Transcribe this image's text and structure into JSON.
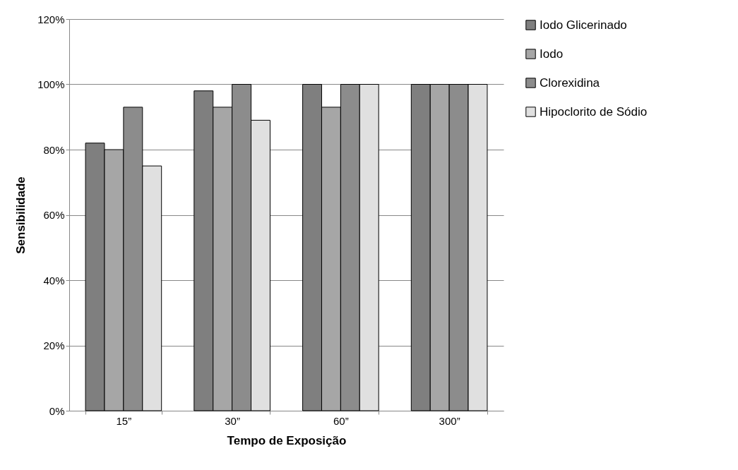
{
  "chart_data": {
    "type": "bar",
    "xlabel": "Tempo de Exposição",
    "ylabel": "Sensibilidade",
    "categories": [
      "15”",
      "30”",
      "60”",
      "300”"
    ],
    "series": [
      {
        "name": "Iodo Glicerinado",
        "color": "#7f7f7f",
        "values": [
          82,
          98,
          100,
          100
        ]
      },
      {
        "name": "Iodo",
        "color": "#a6a6a6",
        "values": [
          80,
          93,
          93,
          100
        ]
      },
      {
        "name": "Clorexidina",
        "color": "#8c8c8c",
        "values": [
          93,
          100,
          100,
          100
        ]
      },
      {
        "name": "Hipoclorito de Sódio",
        "color": "#e0e0e0",
        "values": [
          75,
          89,
          100,
          100
        ]
      }
    ],
    "ylim": [
      0,
      120
    ],
    "yticks": [
      {
        "value": 0,
        "label": "0%"
      },
      {
        "value": 20,
        "label": "20%"
      },
      {
        "value": 40,
        "label": "40%"
      },
      {
        "value": 60,
        "label": "60%"
      },
      {
        "value": 80,
        "label": "80%"
      },
      {
        "value": 100,
        "label": "100%"
      },
      {
        "value": 120,
        "label": "120%"
      }
    ],
    "grid": "y",
    "legend": "right"
  }
}
